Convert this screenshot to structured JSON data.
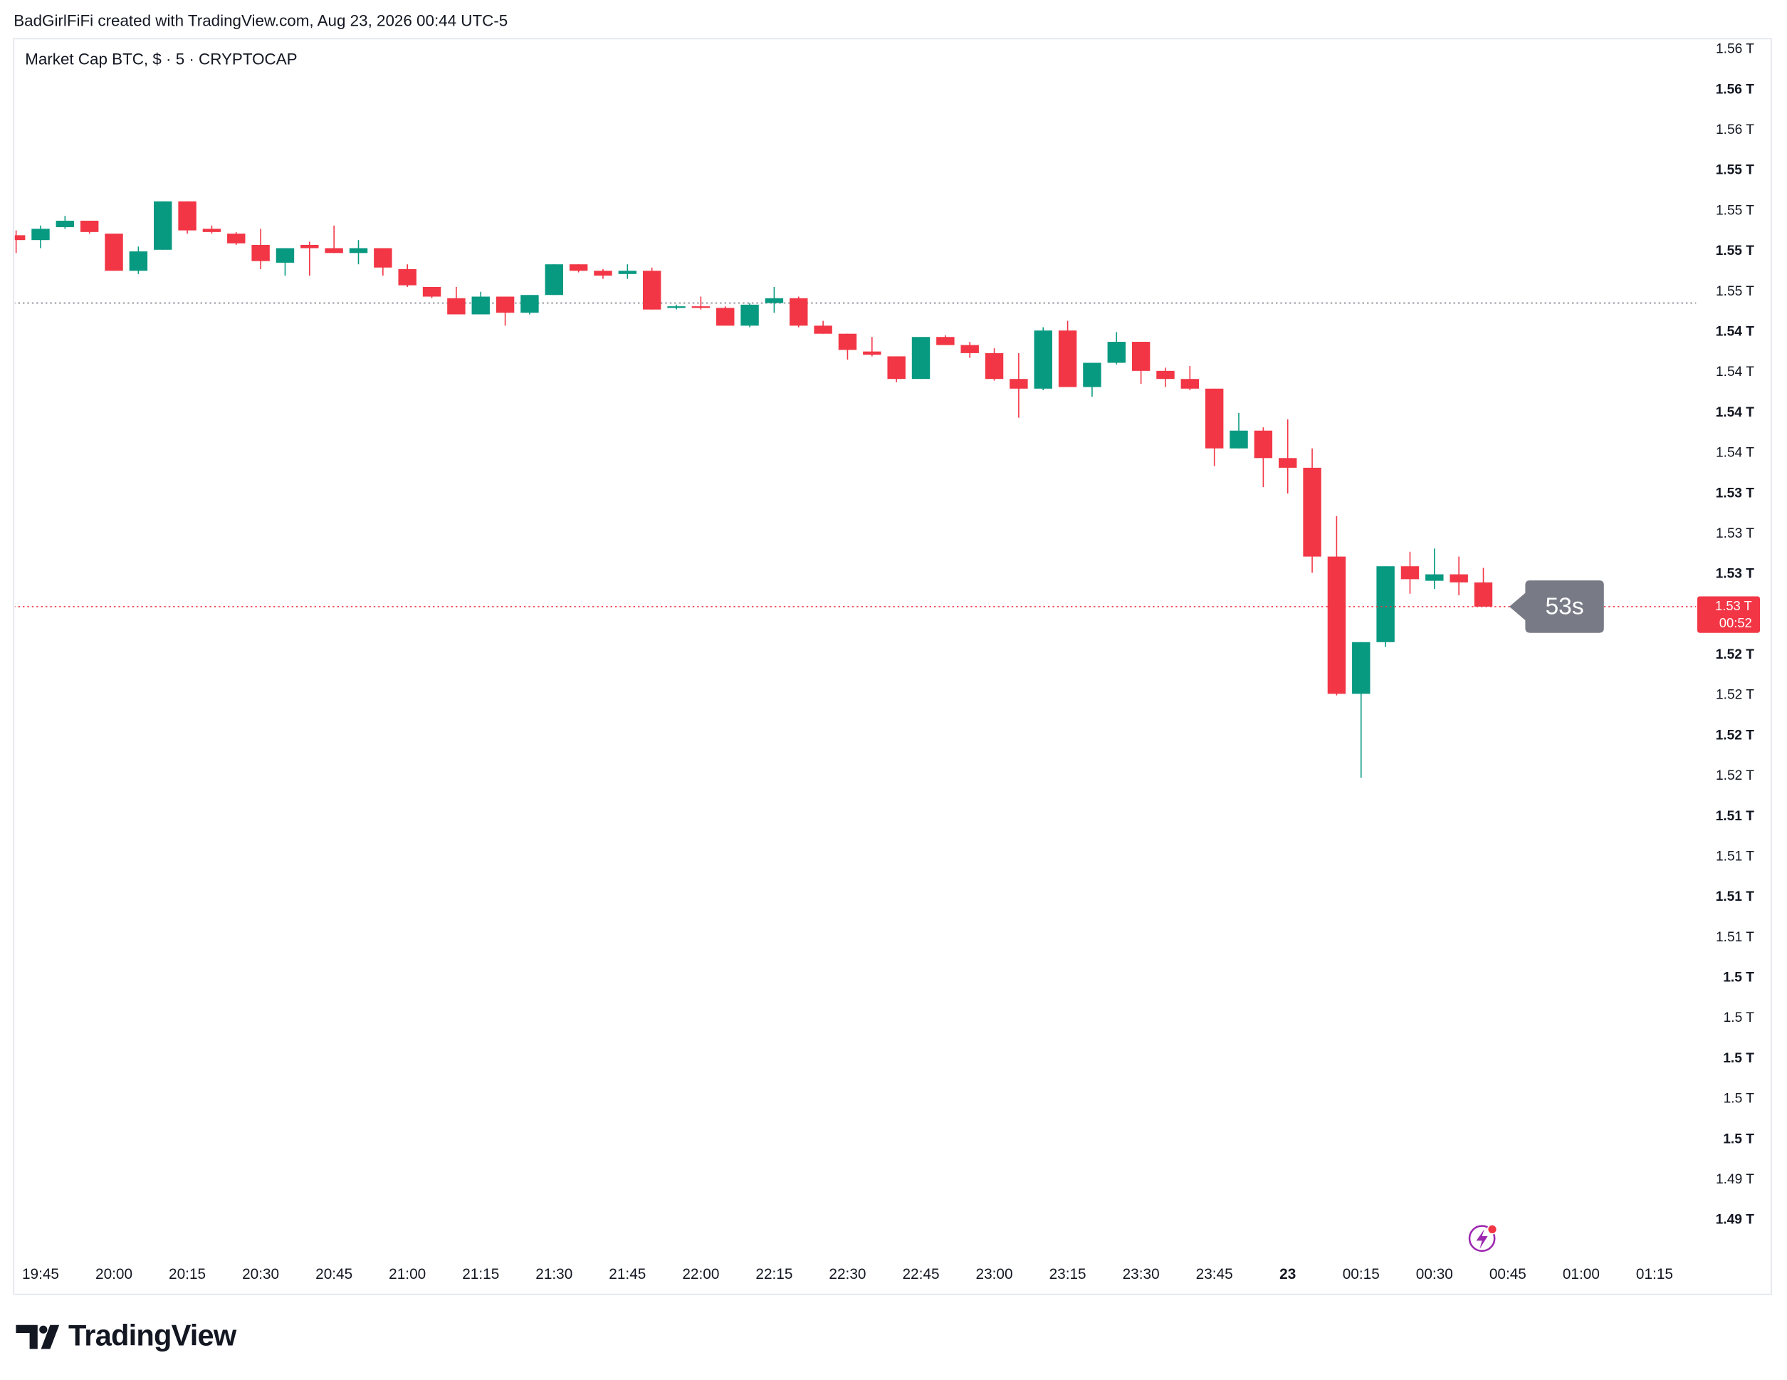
{
  "header": {
    "attribution": "BadGirlFiFi created with TradingView.com, Aug 23, 2026 00:44 UTC-5"
  },
  "footer": {
    "brand": "TradingView"
  },
  "chart_data": {
    "type": "candlestick",
    "title": "Market Cap BTC, $ · 5 · CRYPTOCAP",
    "up_color": "#089981",
    "down_color": "#f23645",
    "open": [
      1.551,
      1.5507,
      1.5515,
      1.5519,
      1.5511,
      1.5488,
      1.5501,
      1.5531,
      1.5514,
      1.5511,
      1.5504,
      1.5493,
      1.5504,
      1.5502,
      1.5499,
      1.5502,
      1.5489,
      1.5478,
      1.5471,
      1.5461,
      1.5472,
      1.5462,
      1.5473,
      1.5492,
      1.5488,
      1.5486,
      1.5488,
      1.5465,
      1.5466,
      1.5465,
      1.5454,
      1.5468,
      1.5471,
      1.5454,
      1.5449,
      1.5438,
      1.5435,
      1.5421,
      1.5447,
      1.5442,
      1.5437,
      1.5421,
      1.5415,
      1.5451,
      1.5416,
      1.5431,
      1.5444,
      1.5426,
      1.5421,
      1.5415,
      1.5378,
      1.5389,
      1.5372,
      1.5366,
      1.5311,
      1.5226,
      1.5258,
      1.5305,
      1.5296,
      1.53,
      1.5295
    ],
    "high": [
      1.5513,
      1.5516,
      1.5522,
      1.5519,
      1.5511,
      1.5503,
      1.5531,
      1.5531,
      1.5516,
      1.5512,
      1.5514,
      1.5502,
      1.5506,
      1.5516,
      1.5507,
      1.5502,
      1.5492,
      1.5478,
      1.5478,
      1.5475,
      1.5472,
      1.5473,
      1.5492,
      1.5492,
      1.5489,
      1.5492,
      1.549,
      1.5467,
      1.5472,
      1.5466,
      1.5468,
      1.5478,
      1.5472,
      1.5457,
      1.5449,
      1.5447,
      1.5435,
      1.5447,
      1.5448,
      1.5444,
      1.544,
      1.5437,
      1.5453,
      1.5457,
      1.5431,
      1.545,
      1.5444,
      1.5428,
      1.5429,
      1.5415,
      1.54,
      1.5391,
      1.5396,
      1.5378,
      1.5336,
      1.5258,
      1.5305,
      1.5314,
      1.5316,
      1.5311,
      1.5304
    ],
    "low": [
      1.5499,
      1.5502,
      1.5514,
      1.5511,
      1.5488,
      1.5486,
      1.5501,
      1.5511,
      1.5511,
      1.5504,
      1.5489,
      1.5485,
      1.5485,
      1.5499,
      1.5492,
      1.5485,
      1.5478,
      1.5471,
      1.5461,
      1.5461,
      1.5454,
      1.5461,
      1.5473,
      1.5487,
      1.5483,
      1.5483,
      1.5464,
      1.5464,
      1.5464,
      1.5454,
      1.5453,
      1.5462,
      1.5453,
      1.5449,
      1.5433,
      1.5435,
      1.5419,
      1.5421,
      1.5442,
      1.5434,
      1.542,
      1.5397,
      1.5414,
      1.5416,
      1.541,
      1.543,
      1.5418,
      1.5416,
      1.5414,
      1.5367,
      1.5378,
      1.5354,
      1.535,
      1.5301,
      1.5225,
      1.5174,
      1.5255,
      1.5288,
      1.5291,
      1.5287,
      1.528
    ],
    "close": [
      1.5507,
      1.5514,
      1.5519,
      1.5512,
      1.5488,
      1.55,
      1.5531,
      1.5513,
      1.5512,
      1.5505,
      1.5494,
      1.5502,
      1.5502,
      1.5499,
      1.5502,
      1.549,
      1.5479,
      1.5472,
      1.5461,
      1.5472,
      1.5462,
      1.5473,
      1.5492,
      1.5488,
      1.5485,
      1.5488,
      1.5464,
      1.5466,
      1.5465,
      1.5454,
      1.5467,
      1.5471,
      1.5454,
      1.5449,
      1.5439,
      1.5436,
      1.5421,
      1.5447,
      1.5442,
      1.5437,
      1.5421,
      1.5415,
      1.5451,
      1.5416,
      1.5431,
      1.5444,
      1.5426,
      1.5421,
      1.5415,
      1.5378,
      1.5389,
      1.5372,
      1.5366,
      1.5311,
      1.5226,
      1.5258,
      1.5305,
      1.5297,
      1.53,
      1.5295,
      1.528
    ],
    "xlim": [
      -0.1,
      68.05
    ],
    "xticks": [
      {
        "value": 1,
        "label": "19:45"
      },
      {
        "value": 4,
        "label": "20:00"
      },
      {
        "value": 7,
        "label": "20:15"
      },
      {
        "value": 10,
        "label": "20:30"
      },
      {
        "value": 13,
        "label": "20:45"
      },
      {
        "value": 16,
        "label": "21:00"
      },
      {
        "value": 19,
        "label": "21:15"
      },
      {
        "value": 22,
        "label": "21:30"
      },
      {
        "value": 25,
        "label": "21:45"
      },
      {
        "value": 28,
        "label": "22:00"
      },
      {
        "value": 31,
        "label": "22:15"
      },
      {
        "value": 34,
        "label": "22:30"
      },
      {
        "value": 37,
        "label": "22:45"
      },
      {
        "value": 40,
        "label": "23:00"
      },
      {
        "value": 43,
        "label": "23:15"
      },
      {
        "value": 46,
        "label": "23:30"
      },
      {
        "value": 49,
        "label": "23:45"
      },
      {
        "value": 52,
        "label": "23"
      },
      {
        "value": 55,
        "label": "00:15"
      },
      {
        "value": 58,
        "label": "00:30"
      },
      {
        "value": 61,
        "label": "00:45"
      },
      {
        "value": 64,
        "label": "01:00"
      },
      {
        "value": 67,
        "label": "01:15"
      }
    ],
    "ylim": [
      1.4876,
      1.5631
    ],
    "yticks": [
      {
        "value": 1.49,
        "label": "1.49 T"
      },
      {
        "value": 1.4925,
        "label": "1.49 T"
      },
      {
        "value": 1.495,
        "label": "1.5 T"
      },
      {
        "value": 1.4975,
        "label": "1.5 T"
      },
      {
        "value": 1.5,
        "label": "1.5 T"
      },
      {
        "value": 1.5025,
        "label": "1.5 T"
      },
      {
        "value": 1.505,
        "label": "1.5 T"
      },
      {
        "value": 1.5075,
        "label": "1.51 T"
      },
      {
        "value": 1.51,
        "label": "1.51 T"
      },
      {
        "value": 1.5125,
        "label": "1.51 T"
      },
      {
        "value": 1.515,
        "label": "1.51 T"
      },
      {
        "value": 1.5175,
        "label": "1.52 T"
      },
      {
        "value": 1.52,
        "label": "1.52 T"
      },
      {
        "value": 1.5225,
        "label": "1.52 T"
      },
      {
        "value": 1.525,
        "label": "1.52 T"
      },
      {
        "value": 1.53,
        "label": "1.53 T"
      },
      {
        "value": 1.5325,
        "label": "1.53 T"
      },
      {
        "value": 1.535,
        "label": "1.53 T"
      },
      {
        "value": 1.5375,
        "label": "1.54 T"
      },
      {
        "value": 1.54,
        "label": "1.54 T"
      },
      {
        "value": 1.5425,
        "label": "1.54 T"
      },
      {
        "value": 1.545,
        "label": "1.54 T"
      },
      {
        "value": 1.5475,
        "label": "1.55 T"
      },
      {
        "value": 1.55,
        "label": "1.55 T"
      },
      {
        "value": 1.5525,
        "label": "1.55 T"
      },
      {
        "value": 1.555,
        "label": "1.55 T"
      },
      {
        "value": 1.5575,
        "label": "1.56 T"
      },
      {
        "value": 1.56,
        "label": "1.56 T"
      },
      {
        "value": 1.5625,
        "label": "1.56 T"
      }
    ],
    "reference_line": {
      "value": 1.5468,
      "color": "#787b86"
    },
    "current_price": {
      "value": 1.528,
      "label": "1.53 T",
      "countdown": "00:52",
      "color": "#f23645"
    },
    "countdown_bubble": "53s"
  }
}
